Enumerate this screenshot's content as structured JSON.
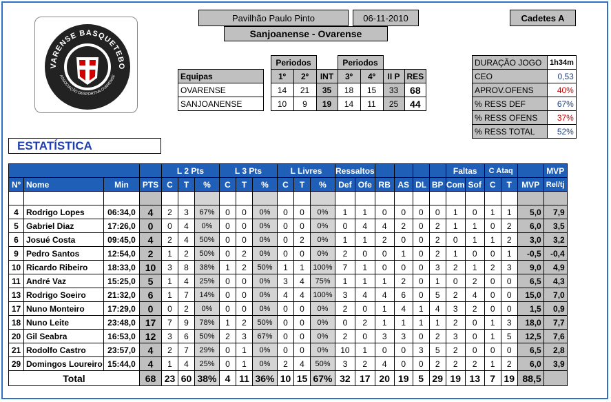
{
  "header": {
    "venue": "Pavilhão Paulo Pinto",
    "date": "06-11-2010",
    "category": "Cadetes A",
    "matchup": "Sanjoanense - Ovarense"
  },
  "logo": {
    "top_text": "OVARENSE BASQUETEBOL",
    "bottom_text": "ASSOCIAÇÃO DESPORTIVA OVARENSE"
  },
  "periods": {
    "periodos_label": "Periodos",
    "headers": [
      "Equipas",
      "1º",
      "2º",
      "INT",
      "3º",
      "4º",
      "II P",
      "RES"
    ],
    "teams": [
      {
        "name": "OVARENSE",
        "q1": "14",
        "q2": "21",
        "int": "35",
        "q3": "18",
        "q4": "15",
        "iip": "33",
        "res": "68"
      },
      {
        "name": "SANJOANENSE",
        "q1": "10",
        "q2": "9",
        "int": "19",
        "q3": "14",
        "q4": "11",
        "iip": "25",
        "res": "44"
      }
    ]
  },
  "game_stats": [
    {
      "label": "DURAÇÃO JOGO",
      "value": "1h34m",
      "color": "#000000"
    },
    {
      "label": "CEO",
      "value": "0,53",
      "color": "#1f3f7f"
    },
    {
      "label": "APROV.OFENS",
      "value": "40%",
      "color": "#d00000"
    },
    {
      "label": "% RESS DEF",
      "value": "67%",
      "color": "#1f3f7f"
    },
    {
      "label": "% RESS OFENS",
      "value": "37%",
      "color": "#d00000"
    },
    {
      "label": "% RESS TOTAL",
      "value": "52%",
      "color": "#1f3f7f"
    }
  ],
  "section_title": "ESTATÍSTICA",
  "stats": {
    "group_headers": {
      "l2": "L 2 Pts",
      "l3": "L 3 Pts",
      "ll": "L Livres",
      "ress": "Ressaltos",
      "faltas": "Faltas",
      "catq": "C Ataq",
      "mvp": "MVP"
    },
    "columns": [
      "Nº",
      "Nome",
      "Min",
      "PTS",
      "C",
      "T",
      "%",
      "C",
      "T",
      "%",
      "C",
      "T",
      "%",
      "Def",
      "Ofe",
      "RB",
      "AS",
      "DL",
      "BP",
      "Com",
      "Sof",
      "C",
      "T",
      "MVP",
      "Rel/tj"
    ],
    "rows": [
      [
        "4",
        "Rodrigo Lopes",
        "06:34,0",
        "4",
        "2",
        "3",
        "67%",
        "0",
        "0",
        "0%",
        "0",
        "0",
        "0%",
        "1",
        "1",
        "0",
        "0",
        "0",
        "0",
        "1",
        "0",
        "1",
        "1",
        "5,0",
        "7,9"
      ],
      [
        "5",
        "Gabriel Diaz",
        "17:26,0",
        "0",
        "0",
        "4",
        "0%",
        "0",
        "0",
        "0%",
        "0",
        "0",
        "0%",
        "0",
        "4",
        "4",
        "2",
        "0",
        "2",
        "1",
        "1",
        "0",
        "2",
        "6,0",
        "3,5"
      ],
      [
        "6",
        "Josué Costa",
        "09:45,0",
        "4",
        "2",
        "4",
        "50%",
        "0",
        "0",
        "0%",
        "0",
        "2",
        "0%",
        "1",
        "1",
        "2",
        "0",
        "0",
        "2",
        "0",
        "1",
        "1",
        "2",
        "3,0",
        "3,2"
      ],
      [
        "9",
        "Pedro Santos",
        "12:54,0",
        "2",
        "1",
        "2",
        "50%",
        "0",
        "2",
        "0%",
        "0",
        "0",
        "0%",
        "2",
        "0",
        "0",
        "1",
        "0",
        "2",
        "1",
        "0",
        "0",
        "1",
        "-0,5",
        "-0,4"
      ],
      [
        "10",
        "Ricardo Ribeiro",
        "18:33,0",
        "10",
        "3",
        "8",
        "38%",
        "1",
        "2",
        "50%",
        "1",
        "1",
        "100%",
        "7",
        "1",
        "0",
        "0",
        "0",
        "3",
        "2",
        "1",
        "2",
        "3",
        "9,0",
        "4,9"
      ],
      [
        "11",
        "André Vaz",
        "15:25,0",
        "5",
        "1",
        "4",
        "25%",
        "0",
        "0",
        "0%",
        "3",
        "4",
        "75%",
        "1",
        "1",
        "1",
        "2",
        "0",
        "1",
        "0",
        "2",
        "0",
        "0",
        "6,5",
        "4,3"
      ],
      [
        "13",
        "Rodrigo Soeiro",
        "21:32,0",
        "6",
        "1",
        "7",
        "14%",
        "0",
        "0",
        "0%",
        "4",
        "4",
        "100%",
        "3",
        "4",
        "4",
        "6",
        "0",
        "5",
        "2",
        "4",
        "0",
        "0",
        "15,0",
        "7,0"
      ],
      [
        "17",
        "Nuno Monteiro",
        "17:29,0",
        "0",
        "0",
        "2",
        "0%",
        "0",
        "0",
        "0%",
        "0",
        "0",
        "0%",
        "2",
        "0",
        "1",
        "4",
        "1",
        "4",
        "3",
        "2",
        "0",
        "0",
        "1,5",
        "0,9"
      ],
      [
        "18",
        "Nuno Leite",
        "23:48,0",
        "17",
        "7",
        "9",
        "78%",
        "1",
        "2",
        "50%",
        "0",
        "0",
        "0%",
        "0",
        "2",
        "1",
        "1",
        "1",
        "1",
        "2",
        "0",
        "1",
        "3",
        "18,0",
        "7,7"
      ],
      [
        "20",
        "Gil Seabra",
        "16:53,0",
        "12",
        "3",
        "6",
        "50%",
        "2",
        "3",
        "67%",
        "0",
        "0",
        "0%",
        "2",
        "0",
        "3",
        "3",
        "0",
        "2",
        "3",
        "0",
        "1",
        "5",
        "12,5",
        "7,6"
      ],
      [
        "21",
        "Rodolfo Castro",
        "23:57,0",
        "4",
        "2",
        "7",
        "29%",
        "0",
        "1",
        "0%",
        "0",
        "0",
        "0%",
        "10",
        "1",
        "0",
        "0",
        "3",
        "5",
        "2",
        "0",
        "0",
        "0",
        "6,5",
        "2,8"
      ],
      [
        "29",
        "Domingos Loureiro",
        "15:44,0",
        "4",
        "1",
        "4",
        "25%",
        "0",
        "1",
        "0%",
        "2",
        "4",
        "50%",
        "3",
        "2",
        "4",
        "0",
        "0",
        "2",
        "2",
        "2",
        "1",
        "2",
        "6,0",
        "3,9"
      ]
    ],
    "totals": {
      "label": "Total",
      "values": [
        "68",
        "23",
        "60",
        "38%",
        "4",
        "11",
        "36%",
        "10",
        "15",
        "67%",
        "32",
        "17",
        "20",
        "19",
        "5",
        "29",
        "19",
        "13",
        "7",
        "19",
        "88,5",
        ""
      ]
    }
  }
}
